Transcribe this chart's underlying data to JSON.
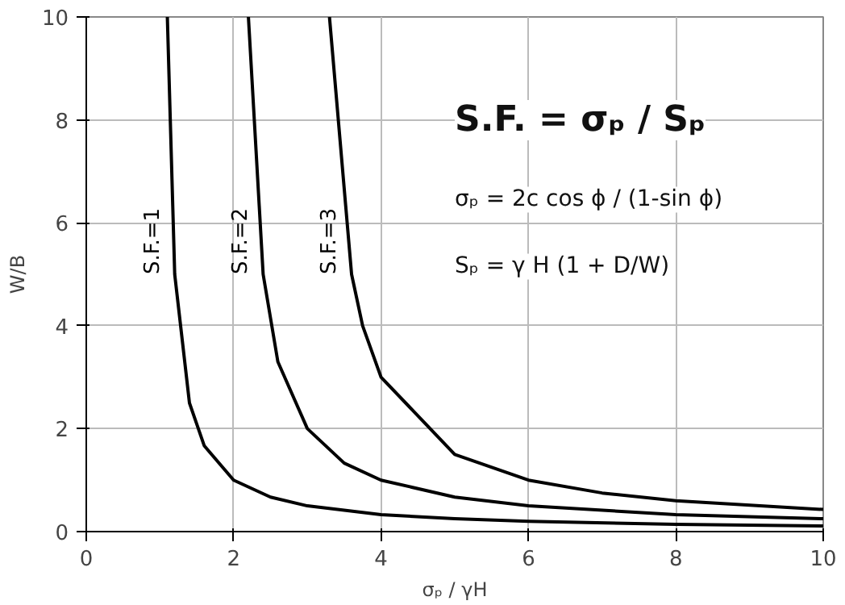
{
  "chart_data": {
    "type": "line",
    "xlabel": "σₚ / γH",
    "ylabel": "W/B",
    "xlim": [
      0,
      10
    ],
    "ylim": [
      0,
      10
    ],
    "xticks": [
      0,
      2,
      4,
      6,
      8,
      10
    ],
    "yticks": [
      0,
      2,
      4,
      6,
      8,
      10
    ],
    "grid": true,
    "line_style": "solid",
    "series": [
      {
        "name": "S.F.=1",
        "color": "#000000",
        "x": [
          1.1,
          1.2,
          1.4,
          1.6,
          2,
          2.5,
          3,
          4,
          5,
          6,
          8,
          10
        ],
        "values": [
          10,
          5,
          2.5,
          1.67,
          1,
          0.67,
          0.5,
          0.33,
          0.25,
          0.2,
          0.14,
          0.11
        ]
      },
      {
        "name": "S.F.=2",
        "color": "#000000",
        "x": [
          2.2,
          2.4,
          2.6,
          3,
          3.5,
          4,
          5,
          6,
          8,
          10
        ],
        "values": [
          10,
          5,
          3.3,
          2,
          1.33,
          1,
          0.67,
          0.5,
          0.33,
          0.25
        ]
      },
      {
        "name": "S.F.=3",
        "color": "#000000",
        "x": [
          3.3,
          3.6,
          3.75,
          4,
          5,
          6,
          7,
          8,
          10
        ],
        "values": [
          10,
          5,
          4,
          3,
          1.5,
          1,
          0.75,
          0.6,
          0.43
        ]
      }
    ],
    "annotations": [
      "S.F. = σₚ / Sₚ",
      "σₚ = 2c cos ϕ / (1-sin ϕ)",
      "Sₚ = γ H (1 + D/W)"
    ]
  }
}
